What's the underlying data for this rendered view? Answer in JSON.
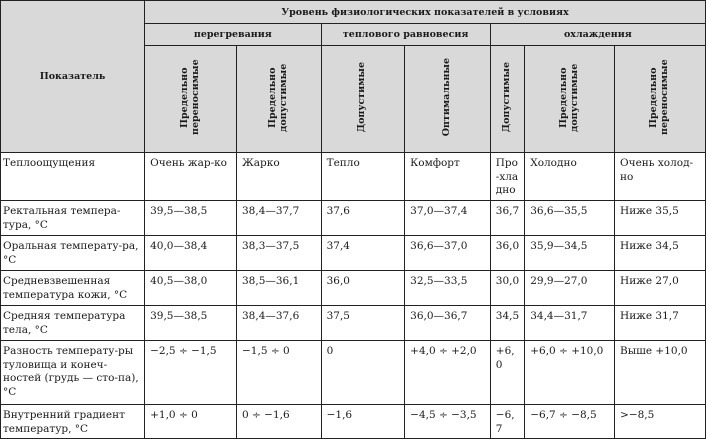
{
  "header": {
    "param_label": "Показатель",
    "title": "Уровень физиологических показателей в условиях",
    "groups": [
      "перегревания",
      "теплового равновесия",
      "охлаждения"
    ],
    "columns": [
      "Предельно переносимые",
      "Предельно допустимые",
      "Допустимые",
      "Оптимальные",
      "Допустимые",
      "Предельно допустимые",
      "Предельно переносимые"
    ]
  },
  "rows": [
    {
      "name": "Теплоощущения",
      "values": [
        "Очень жар-ко",
        "Жарко",
        "Тепло",
        "Комфорт",
        "Про-хладно",
        "Холодно",
        "Очень холод-но"
      ]
    },
    {
      "name": "Ректальная темпера-тура, °С",
      "values": [
        "39,5—38,5",
        "38,4—37,7",
        "37,6",
        "37,0—37,4",
        "36,7",
        "36,6—35,5",
        "Ниже 35,5"
      ]
    },
    {
      "name": "Оральная температу-ра, °С",
      "values": [
        "40,0—38,4",
        "38,3—37,5",
        "37,4",
        "36,6—37,0",
        "36,0",
        "35,9—34,5",
        "Ниже 34,5"
      ]
    },
    {
      "name": "Средневзвешенная температура кожи, °С",
      "values": [
        "40,5—38,0",
        "38,5—36,1",
        "36,0",
        "32,5—33,5",
        "30,0",
        "29,9—27,0",
        "Ниже 27,0"
      ]
    },
    {
      "name": "Средняя температура тела, °С",
      "values": [
        "39,5—38,5",
        "38,4—37,6",
        "37,5",
        "36,0—36,7",
        "34,5",
        "34,4—31,7",
        "Ниже 31,7"
      ]
    },
    {
      "name": "Разность температу-ры туловища и конеч-ностей (грудь — сто-па), °С",
      "values": [
        "−2,5 ÷ −1,5",
        "−1,5 ÷ 0",
        "0",
        "+4,0 ÷ +2,0",
        "+6,0",
        "+6,0 ÷ +10,0",
        "Выше +10,0"
      ]
    },
    {
      "name": "Внутренний градиент температур, °С",
      "values": [
        "+1,0 ÷ 0",
        "0 ÷ −1,6",
        "−1,6",
        "−4,5 ÷ −3,5",
        "−6,7",
        "−6,7 ÷ −8,5",
        ">−8,5"
      ]
    }
  ]
}
